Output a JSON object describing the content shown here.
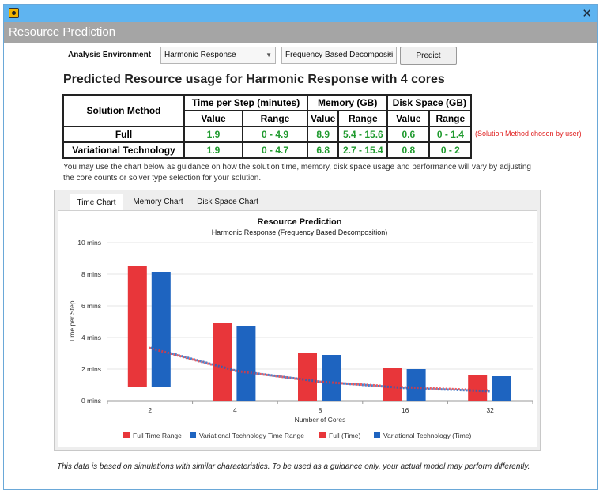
{
  "window": {
    "title": "Resource Prediction"
  },
  "controls": {
    "env_label": "Analysis Environment",
    "env_select": "Harmonic Response",
    "method_select": "Frequency Based Decompositi",
    "predict_label": "Predict"
  },
  "headline": "Predicted Resource usage for Harmonic Response with 4 cores",
  "table": {
    "h_method": "Solution Method",
    "h_time": "Time per Step (minutes)",
    "h_memory": "Memory (GB)",
    "h_disk": "Disk Space (GB)",
    "h_value": "Value",
    "h_range": "Range",
    "rows": [
      {
        "method": "Full",
        "time_value": "1.9",
        "time_range": "0 - 4.9",
        "mem_value": "8.9",
        "mem_range": "5.4 - 15.6",
        "disk_value": "0.6",
        "disk_range": "0 - 1.4"
      },
      {
        "method": "Variational Technology",
        "time_value": "1.9",
        "time_range": "0 - 4.7",
        "mem_value": "6.8",
        "mem_range": "2.7 - 15.4",
        "disk_value": "0.8",
        "disk_range": "0 - 2"
      }
    ],
    "chosen_note": "(Solution Method chosen by user)"
  },
  "description": "You may use the chart below as guidance on how the solution time, memory, disk space usage and performance will vary by adjusting the core counts or solver type selection for your solution.",
  "tabs": [
    "Time Chart",
    "Memory Chart",
    "Disk Space Chart"
  ],
  "footer": "This data is based on simulations with similar characteristics. To be used as a guidance only, your actual model may perform differently.",
  "colors": {
    "red": "#e8363a",
    "blue": "#1e64c0",
    "green": "#1f9a2e",
    "dash": "#4b4f8f"
  },
  "chart_data": {
    "type": "bar",
    "title": "Resource Prediction",
    "subtitle": "Harmonic Response (Frequency Based Decomposition)",
    "xlabel": "Number of Cores",
    "ylabel": "Time per Step",
    "categories": [
      "2",
      "4",
      "8",
      "16",
      "32"
    ],
    "ylim": [
      0,
      10
    ],
    "yticks": [
      "0 mins",
      "2 mins",
      "4 mins",
      "6 mins",
      "8 mins",
      "10 mins"
    ],
    "series": [
      {
        "name": "Full Time Range",
        "low": [
          0.85,
          0,
          0,
          0,
          0
        ],
        "high": [
          8.5,
          4.9,
          3.05,
          2.1,
          1.6
        ]
      },
      {
        "name": "Variational Technology Time Range",
        "low": [
          0.85,
          0,
          0,
          0,
          0
        ],
        "high": [
          8.15,
          4.7,
          2.9,
          2.0,
          1.55
        ]
      },
      {
        "name": "Full (Time)",
        "values": [
          3.35,
          1.9,
          1.2,
          0.85,
          0.65
        ]
      },
      {
        "name": "Variational Technology (Time)",
        "values": [
          3.35,
          1.9,
          1.2,
          0.8,
          0.6
        ]
      }
    ]
  }
}
